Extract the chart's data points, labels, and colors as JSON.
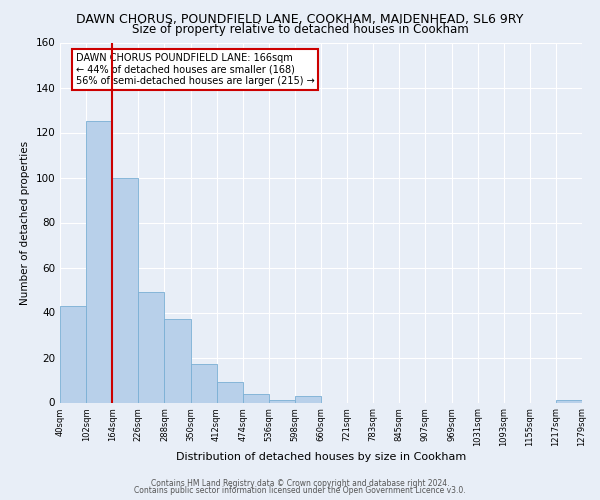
{
  "title": "DAWN CHORUS, POUNDFIELD LANE, COOKHAM, MAIDENHEAD, SL6 9RY",
  "subtitle": "Size of property relative to detached houses in Cookham",
  "xlabel": "Distribution of detached houses by size in Cookham",
  "ylabel": "Number of detached properties",
  "bin_labels": [
    "40sqm",
    "102sqm",
    "164sqm",
    "226sqm",
    "288sqm",
    "350sqm",
    "412sqm",
    "474sqm",
    "536sqm",
    "598sqm",
    "660sqm",
    "721sqm",
    "783sqm",
    "845sqm",
    "907sqm",
    "969sqm",
    "1031sqm",
    "1093sqm",
    "1155sqm",
    "1217sqm",
    "1279sqm"
  ],
  "bar_heights": [
    43,
    125,
    100,
    49,
    37,
    17,
    9,
    4,
    1,
    3,
    0,
    0,
    0,
    0,
    0,
    0,
    0,
    0,
    0,
    1
  ],
  "bar_color": "#b8d0ea",
  "bar_edge_color": "#7aafd4",
  "marker_bin_index": 2,
  "marker_color": "#cc0000",
  "ylim": [
    0,
    160
  ],
  "yticks": [
    0,
    20,
    40,
    60,
    80,
    100,
    120,
    140,
    160
  ],
  "annotation_title": "DAWN CHORUS POUNDFIELD LANE: 166sqm",
  "annotation_line1": "← 44% of detached houses are smaller (168)",
  "annotation_line2": "56% of semi-detached houses are larger (215) →",
  "annotation_box_color": "#ffffff",
  "annotation_box_edge": "#cc0000",
  "footer1": "Contains HM Land Registry data © Crown copyright and database right 2024.",
  "footer2": "Contains public sector information licensed under the Open Government Licence v3.0.",
  "bg_color": "#e8eef7",
  "grid_color": "#ffffff",
  "title_fontsize": 9,
  "subtitle_fontsize": 8.5
}
